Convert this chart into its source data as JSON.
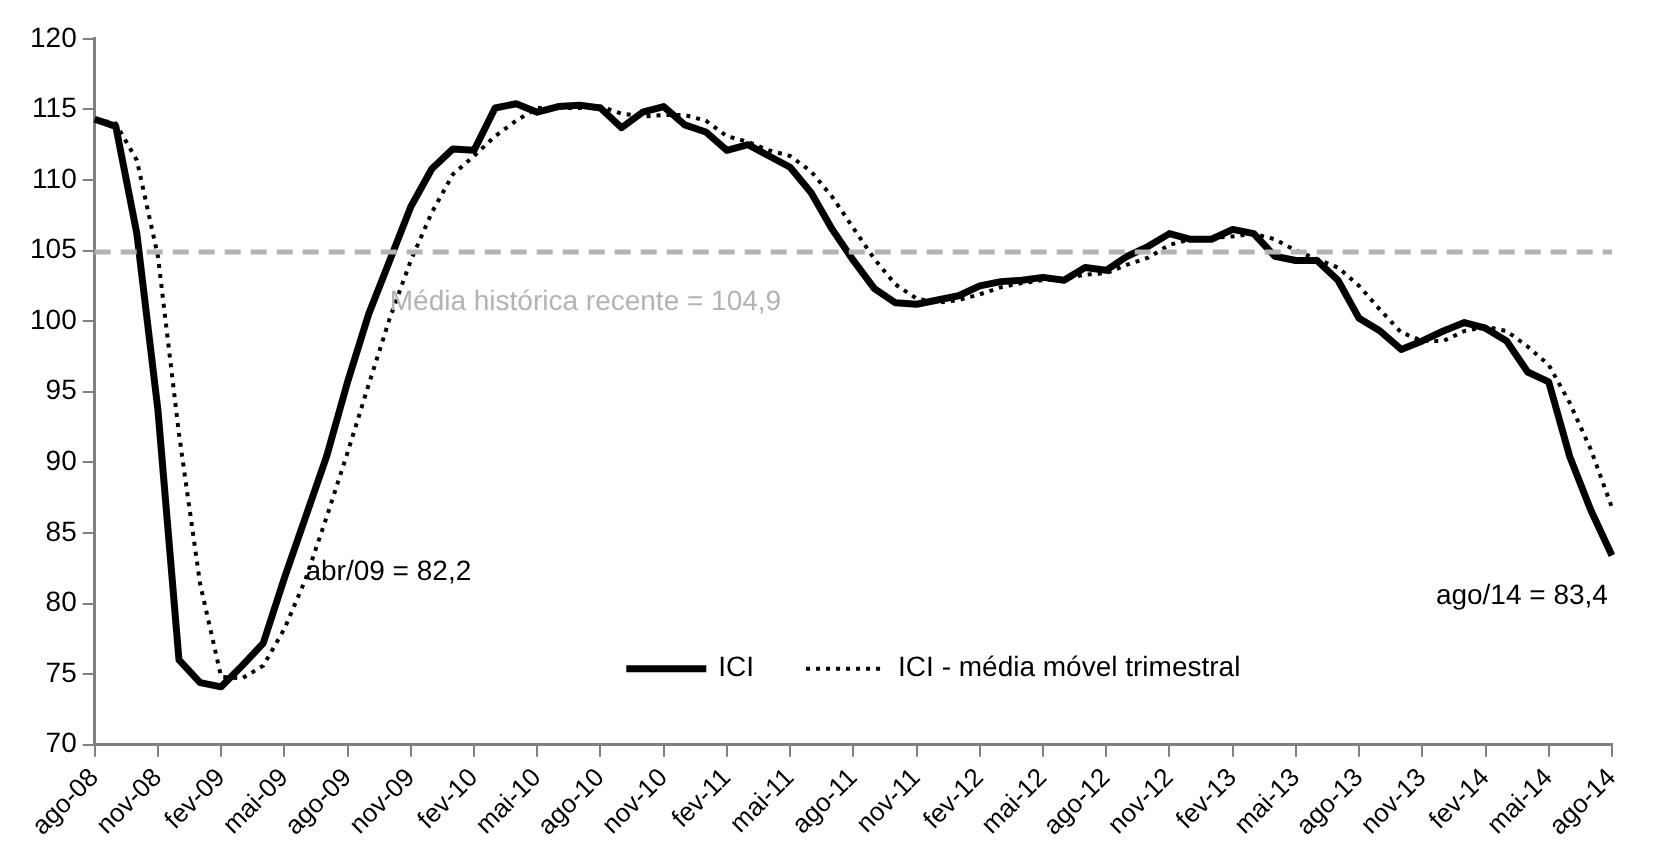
{
  "chart_data": {
    "type": "line",
    "categories": [
      "ago-08",
      null,
      null,
      "nov-08",
      null,
      null,
      "fev-09",
      null,
      null,
      "mai-09",
      null,
      null,
      "ago-09",
      null,
      null,
      "nov-09",
      null,
      null,
      "fev-10",
      null,
      null,
      "mai-10",
      null,
      null,
      "ago-10",
      null,
      null,
      "nov-10",
      null,
      null,
      "fev-11",
      null,
      null,
      "mai-11",
      null,
      null,
      "ago-11",
      null,
      null,
      "nov-11",
      null,
      null,
      "fev-12",
      null,
      null,
      "mai-12",
      null,
      null,
      "ago-12",
      null,
      null,
      "nov-12",
      null,
      null,
      "fev-13",
      null,
      null,
      "mai-13",
      null,
      null,
      "ago-13",
      null,
      null,
      "nov-13",
      null,
      null,
      "fev-14",
      null,
      null,
      "mai-14",
      null,
      null,
      "ago-14"
    ],
    "series": [
      {
        "name": "ICI",
        "color": "#000000",
        "line_style": "solid",
        "values": [
          114.3,
          113.8,
          106.2,
          93.7,
          76.0,
          74.4,
          74.1,
          75.6,
          77.2,
          81.8,
          86.1,
          90.4,
          95.7,
          100.5,
          104.3,
          108.1,
          110.8,
          112.2,
          112.1,
          115.1,
          115.4,
          114.8,
          115.2,
          115.3,
          115.1,
          113.7,
          114.8,
          115.2,
          113.9,
          113.4,
          112.1,
          112.5,
          111.7,
          110.9,
          109.1,
          106.5,
          104.3,
          102.3,
          101.3,
          101.2,
          101.5,
          101.8,
          102.5,
          102.8,
          102.9,
          103.1,
          102.9,
          103.8,
          103.6,
          104.6,
          105.3,
          106.2,
          105.8,
          105.8,
          106.5,
          106.2,
          104.6,
          104.3,
          104.3,
          102.9,
          100.2,
          99.3,
          98.0,
          98.6,
          99.3,
          99.9,
          99.5,
          98.6,
          96.4,
          95.7,
          90.4,
          86.6,
          83.4
        ]
      },
      {
        "name": "ICI - média móvel trimestral",
        "color": "#000000",
        "line_style": "dotted",
        "values": [
          114.3,
          114.0,
          111.4,
          104.6,
          92.0,
          81.4,
          74.8,
          74.7,
          75.6,
          78.2,
          81.7,
          86.1,
          90.7,
          95.5,
          100.2,
          104.3,
          107.7,
          110.4,
          111.7,
          113.1,
          114.2,
          115.1,
          115.1,
          115.1,
          115.2,
          114.7,
          114.5,
          114.6,
          114.6,
          114.2,
          113.1,
          112.7,
          112.1,
          111.7,
          110.6,
          108.8,
          106.6,
          104.4,
          102.6,
          101.6,
          101.3,
          101.5,
          101.9,
          102.4,
          102.7,
          102.9,
          103.0,
          103.3,
          103.4,
          104.0,
          104.5,
          105.4,
          105.8,
          105.9,
          106.0,
          106.2,
          105.8,
          105.0,
          104.4,
          103.8,
          102.5,
          100.8,
          99.2,
          98.6,
          98.6,
          99.3,
          99.6,
          99.3,
          98.2,
          96.9,
          94.2,
          90.9,
          86.8
        ]
      }
    ],
    "ylim": [
      70,
      120
    ],
    "yticks": [
      70,
      75,
      80,
      85,
      90,
      95,
      100,
      105,
      110,
      115,
      120
    ],
    "ref_lines": [
      {
        "axis": "y",
        "value": 104.9,
        "label": "Média histórica recente = 104,9",
        "color": "#b3b3b3",
        "line_style": "dashed"
      }
    ],
    "annotations": [
      "abr/09 = 82,2",
      "ago/14 = 83,4"
    ],
    "grid": false,
    "legend": "bottom",
    "marker": "none"
  }
}
